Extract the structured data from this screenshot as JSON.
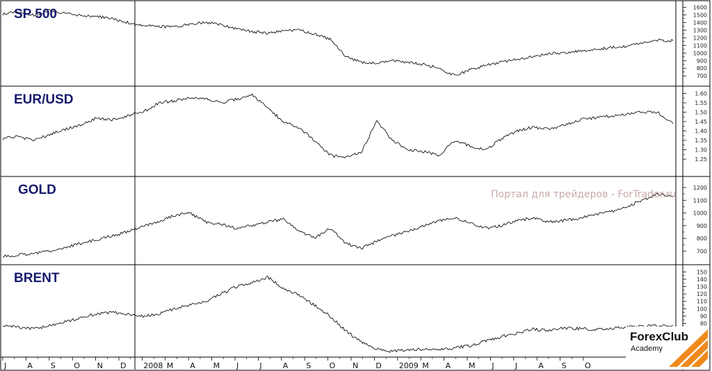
{
  "watermark": "Портал для трейдеров - ForTrader.ru",
  "brand": {
    "name": "ForexClub",
    "sub": "Academy",
    "accent": "#f08a1c"
  },
  "x_axis": {
    "labels": [
      "J",
      "A",
      "S",
      "O",
      "N",
      "D",
      "2008",
      "M",
      "A",
      "M",
      "J",
      "J",
      "A",
      "S",
      "O",
      "N",
      "D",
      "2009",
      "M",
      "A",
      "M",
      "J",
      "J",
      "A",
      "S",
      "O"
    ]
  },
  "chart_data": [
    {
      "type": "line",
      "title": "SP 500",
      "ylim": [
        620,
        1640
      ],
      "yticks": [
        700,
        800,
        900,
        1000,
        1100,
        1200,
        1300,
        1400,
        1500,
        1600
      ],
      "series": [
        {
          "values": [
            1510,
            1545,
            1490,
            1560,
            1520,
            1490,
            1480,
            1450,
            1400,
            1360,
            1350,
            1335,
            1380,
            1400,
            1370,
            1320,
            1280,
            1260,
            1290,
            1300,
            1250,
            1180,
            950,
            880,
            860,
            900,
            880,
            850,
            800,
            700,
            780,
            840,
            880,
            920,
            950,
            990,
            1000,
            1020,
            1050,
            1070,
            1090,
            1130,
            1170,
            1160
          ]
        }
      ]
    },
    {
      "type": "line",
      "title": "EUR/USD",
      "ylim": [
        1.18,
        1.62
      ],
      "yticks": [
        1.25,
        1.3,
        1.35,
        1.4,
        1.45,
        1.5,
        1.55,
        1.6
      ],
      "series": [
        {
          "values": [
            1.36,
            1.37,
            1.35,
            1.38,
            1.41,
            1.43,
            1.47,
            1.46,
            1.48,
            1.5,
            1.55,
            1.56,
            1.58,
            1.57,
            1.55,
            1.57,
            1.59,
            1.52,
            1.45,
            1.42,
            1.35,
            1.27,
            1.26,
            1.29,
            1.45,
            1.35,
            1.3,
            1.29,
            1.27,
            1.35,
            1.32,
            1.3,
            1.36,
            1.4,
            1.42,
            1.41,
            1.43,
            1.46,
            1.47,
            1.48,
            1.49,
            1.5,
            1.5,
            1.44
          ]
        }
      ]
    },
    {
      "type": "line",
      "title": "GOLD",
      "ylim": [
        620,
        1260
      ],
      "yticks": [
        700,
        800,
        900,
        1000,
        1100,
        1200
      ],
      "series": [
        {
          "values": [
            660,
            670,
            680,
            700,
            730,
            760,
            790,
            820,
            850,
            900,
            930,
            980,
            1000,
            930,
            910,
            880,
            900,
            930,
            950,
            860,
            800,
            880,
            760,
            720,
            780,
            820,
            860,
            900,
            940,
            960,
            920,
            880,
            900,
            940,
            960,
            930,
            940,
            960,
            990,
            1010,
            1050,
            1100,
            1150,
            1130
          ]
        }
      ]
    },
    {
      "type": "line",
      "title": "BRENT",
      "ylim": [
        40,
        155
      ],
      "yticks": [
        70,
        80,
        90,
        100,
        110,
        120,
        130,
        140,
        150
      ],
      "series": [
        {
          "values": [
            78,
            75,
            73,
            77,
            82,
            88,
            93,
            95,
            92,
            90,
            93,
            100,
            105,
            110,
            120,
            130,
            135,
            143,
            128,
            118,
            105,
            90,
            70,
            55,
            45,
            42,
            44,
            45,
            44,
            47,
            50,
            56,
            62,
            67,
            72,
            70,
            74,
            73,
            72,
            73,
            76,
            76,
            77,
            78
          ]
        }
      ]
    }
  ]
}
